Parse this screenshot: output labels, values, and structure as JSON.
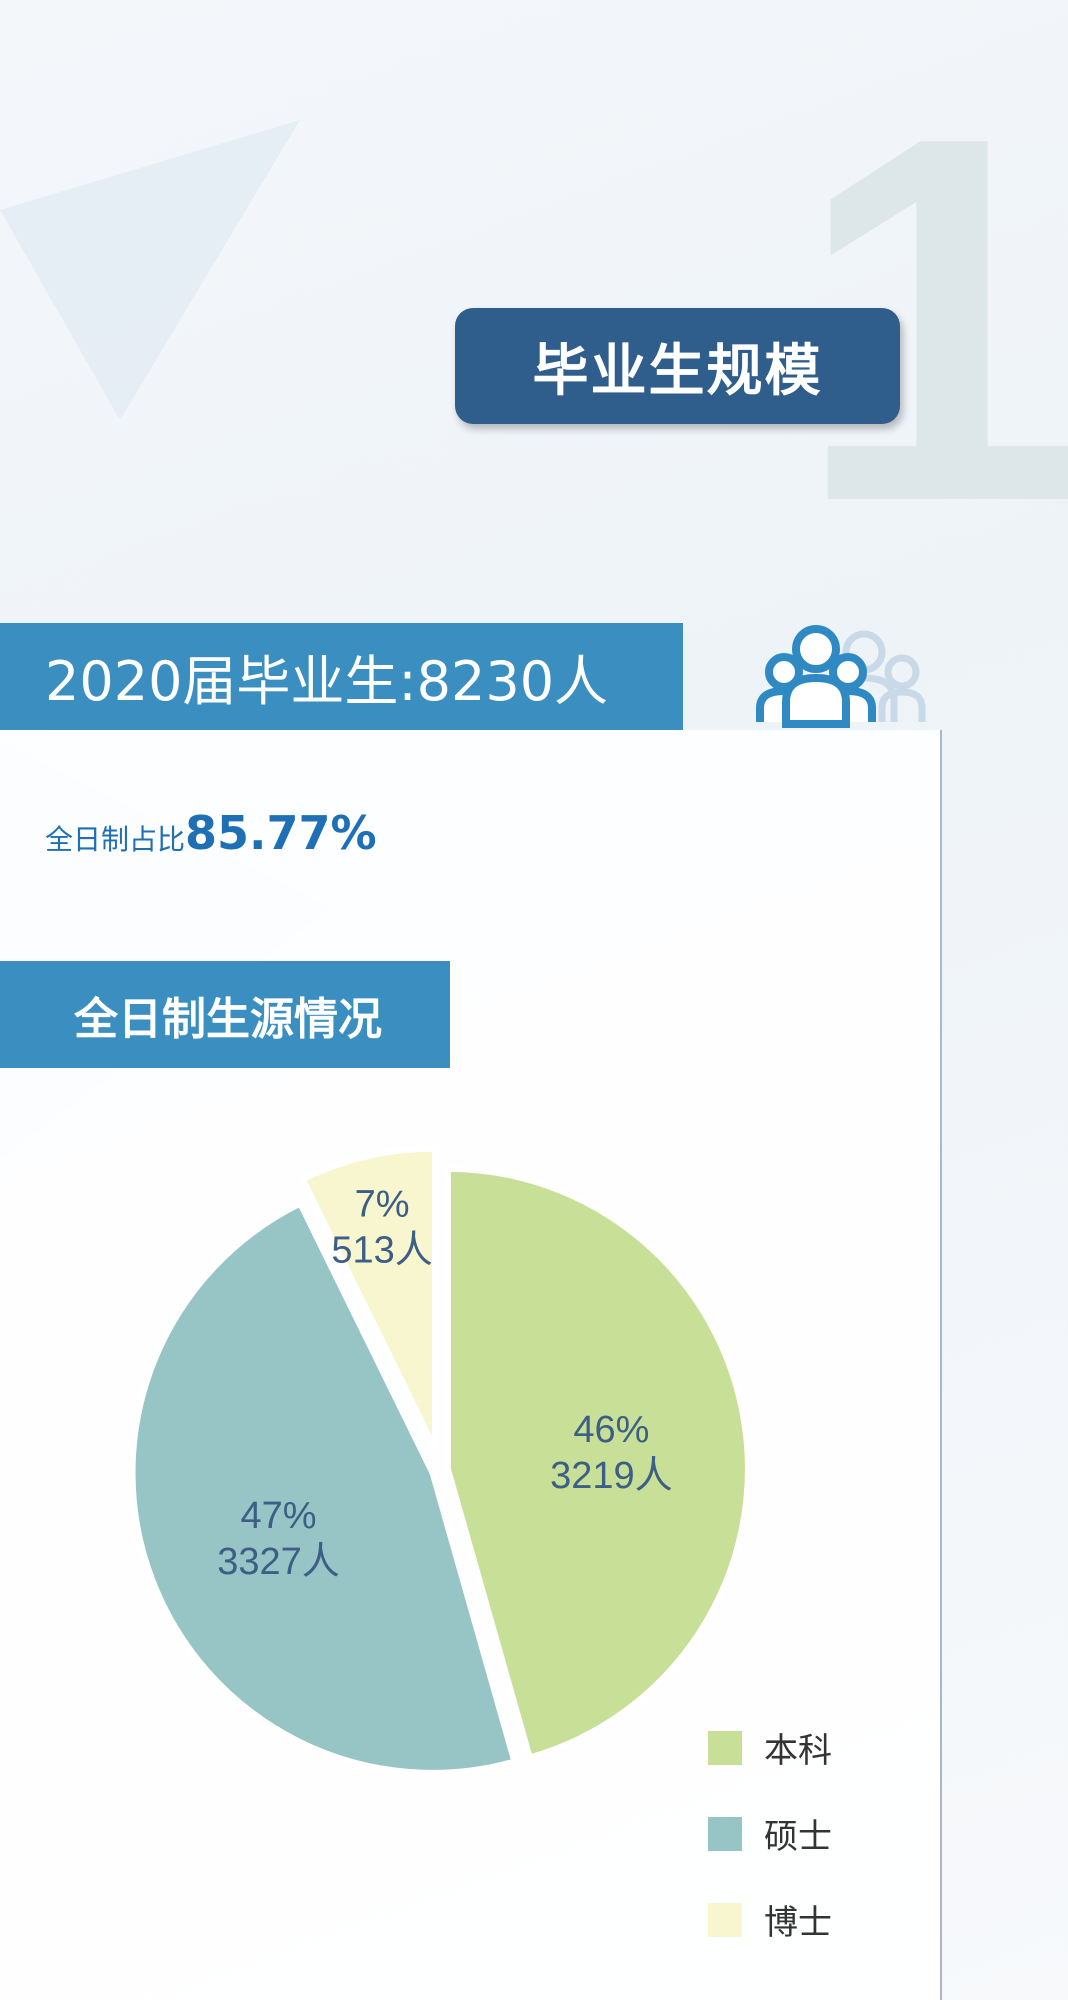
{
  "watermark_number": "1",
  "title": "毕业生规模",
  "banner": {
    "label": "2020届毕业生:",
    "value": "8230人"
  },
  "icon": "people-group-icon",
  "fulltime_ratio": {
    "label": "全日制占比",
    "value": "85.77%"
  },
  "section_title": "全日制生源情况",
  "chart_data": {
    "type": "pie",
    "categories": [
      "本科",
      "硕士",
      "博士"
    ],
    "values": [
      3219,
      3327,
      513
    ],
    "percent_labels": [
      "46%",
      "47%",
      "7%"
    ],
    "count_labels": [
      "3219人",
      "3327人",
      "513人"
    ],
    "colors": [
      "#c8df97",
      "#97c4c5",
      "#f8f6cf"
    ],
    "legend": "bottom-right",
    "exploded": true
  }
}
